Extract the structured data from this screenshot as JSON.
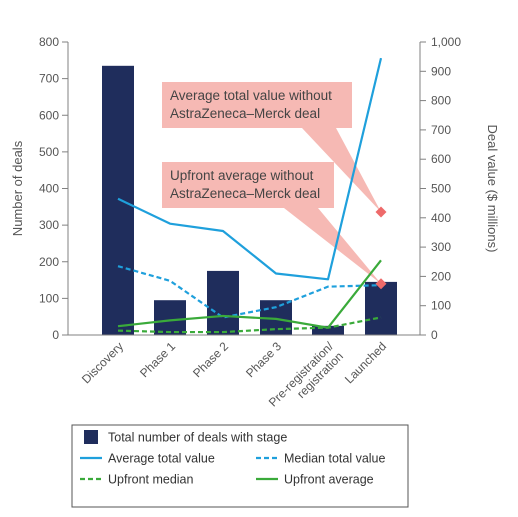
{
  "chart_data": {
    "type": "bar",
    "categories": [
      "Discovery",
      "Phase 1",
      "Phase 2",
      "Phase 3",
      "Pre-registration/\nregistration",
      "Launched"
    ],
    "y_left": {
      "label": "Number of deals",
      "min": 0,
      "max": 800,
      "ticks": [
        0,
        100,
        200,
        300,
        400,
        500,
        600,
        700,
        800
      ]
    },
    "y_right": {
      "label": "Deal value ($ millions)",
      "min": 0,
      "max": 1000,
      "ticks": [
        "0",
        "100",
        "200",
        "300",
        "400",
        "500",
        "600",
        "700",
        "800",
        "900",
        "1,000"
      ]
    },
    "bars": {
      "name": "Total number of deals with stage",
      "axis": "left",
      "color": "#1f2d5c",
      "values": [
        735,
        95,
        175,
        95,
        25,
        145
      ]
    },
    "series": [
      {
        "name": "Average total value",
        "axis": "right",
        "style": "solid",
        "color": "#1fa0dc",
        "values": [
          465,
          380,
          355,
          210,
          190,
          945
        ]
      },
      {
        "name": "Median total value",
        "axis": "right",
        "style": "dashed",
        "color": "#1fa0dc",
        "values": [
          235,
          185,
          60,
          95,
          165,
          170
        ]
      },
      {
        "name": "Upfront median",
        "axis": "right",
        "style": "dashed",
        "color": "#3aaa3a",
        "values": [
          15,
          10,
          10,
          20,
          25,
          60
        ]
      },
      {
        "name": "Upfront average",
        "axis": "right",
        "style": "solid",
        "color": "#3aaa3a",
        "values": [
          30,
          50,
          65,
          55,
          25,
          255
        ]
      }
    ],
    "annotations": [
      {
        "text": [
          "Average total value without",
          "AstraZeneca–Merck deal"
        ],
        "marker_value": 420,
        "axis": "right",
        "category": "Launched",
        "color": "#ee6a6a"
      },
      {
        "text": [
          "Upfront average without",
          "AstraZeneca–Merck deal"
        ],
        "marker_value": 175,
        "axis": "right",
        "category": "Launched",
        "color": "#ee6a6a"
      }
    ],
    "grid": false,
    "legend": "bottom"
  },
  "legend_items": [
    {
      "label": "Total number of deals with stage",
      "kind": "bar",
      "color": "#1f2d5c"
    },
    {
      "label": "Average total value",
      "kind": "solid",
      "color": "#1fa0dc"
    },
    {
      "label": "Median total value",
      "kind": "dashed",
      "color": "#1fa0dc"
    },
    {
      "label": "Upfront median",
      "kind": "dashed",
      "color": "#3aaa3a"
    },
    {
      "label": "Upfront average",
      "kind": "solid",
      "color": "#3aaa3a"
    }
  ]
}
